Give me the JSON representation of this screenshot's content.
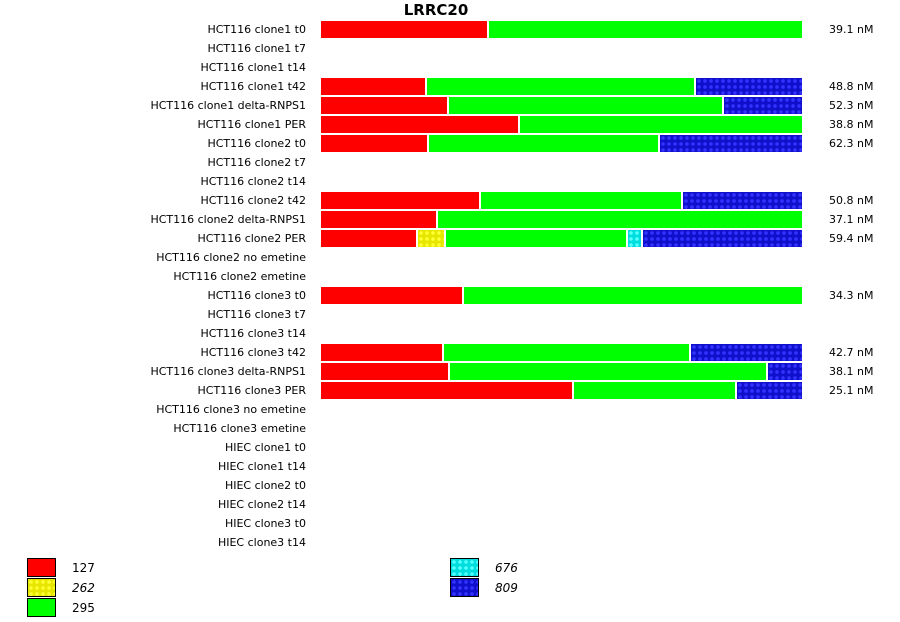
{
  "chart_data": {
    "type": "bar",
    "orientation": "horizontal-stacked-100",
    "title": "LRRC20",
    "xlabel": "",
    "ylabel": "",
    "legend": [
      {
        "key": "127",
        "color": "#ff0000",
        "pattern": "red",
        "italic": false
      },
      {
        "key": "262",
        "color": "#e6e600",
        "pattern": "yellow",
        "italic": true
      },
      {
        "key": "295",
        "color": "#00ff00",
        "pattern": "green",
        "italic": false
      },
      {
        "key": "676",
        "color": "#00dddd",
        "pattern": "cyan",
        "italic": true
      },
      {
        "key": "809",
        "color": "#1010cc",
        "pattern": "blue",
        "italic": true
      }
    ],
    "legend_position": "bottom",
    "categories": [
      "HCT116 clone1 t0",
      "HCT116 clone1 t7",
      "HCT116 clone1 t14",
      "HCT116 clone1 t42",
      "HCT116 clone1 delta-RNPS1",
      "HCT116 clone1 PER",
      "HCT116 clone2 t0",
      "HCT116 clone2 t7",
      "HCT116 clone2 t14",
      "HCT116 clone2 t42",
      "HCT116 clone2 delta-RNPS1",
      "HCT116 clone2 PER",
      "HCT116 clone2 no emetine",
      "HCT116 clone2 emetine",
      "HCT116 clone3 t0",
      "HCT116 clone3 t7",
      "HCT116 clone3 t14",
      "HCT116 clone3 t42",
      "HCT116 clone3 delta-RNPS1",
      "HCT116 clone3 PER",
      "HCT116 clone3 no emetine",
      "HCT116 clone3 emetine",
      "HIEC clone1 t0",
      "HIEC clone1 t14",
      "HIEC clone2 t0",
      "HIEC clone2 t14",
      "HIEC clone3 t0",
      "HIEC clone3 t14"
    ],
    "rows": [
      {
        "label": "HCT116 clone1 t0",
        "total": "39.1 nM",
        "segments": [
          {
            "key": "127",
            "fraction": 0.35
          },
          {
            "key": "295",
            "fraction": 0.65
          }
        ]
      },
      {
        "label": "HCT116 clone1 t7",
        "total": "",
        "segments": []
      },
      {
        "label": "HCT116 clone1 t14",
        "total": "",
        "segments": []
      },
      {
        "label": "HCT116 clone1 t42",
        "total": "48.8 nM",
        "segments": [
          {
            "key": "127",
            "fraction": 0.22
          },
          {
            "key": "295",
            "fraction": 0.56
          },
          {
            "key": "809",
            "fraction": 0.22
          }
        ]
      },
      {
        "label": "HCT116 clone1 delta-RNPS1",
        "total": "52.3 nM",
        "segments": [
          {
            "key": "127",
            "fraction": 0.267
          },
          {
            "key": "295",
            "fraction": 0.571
          },
          {
            "key": "809",
            "fraction": 0.162
          }
        ]
      },
      {
        "label": "HCT116 clone1 PER",
        "total": "38.8 nM",
        "segments": [
          {
            "key": "127",
            "fraction": 0.413
          },
          {
            "key": "295",
            "fraction": 0.587
          }
        ]
      },
      {
        "label": "HCT116 clone2 t0",
        "total": "62.3 nM",
        "segments": [
          {
            "key": "127",
            "fraction": 0.225
          },
          {
            "key": "295",
            "fraction": 0.479
          },
          {
            "key": "809",
            "fraction": 0.296
          }
        ]
      },
      {
        "label": "HCT116 clone2 t7",
        "total": "",
        "segments": []
      },
      {
        "label": "HCT116 clone2 t14",
        "total": "",
        "segments": []
      },
      {
        "label": "HCT116 clone2 t42",
        "total": "50.8 nM",
        "segments": [
          {
            "key": "127",
            "fraction": 0.333
          },
          {
            "key": "295",
            "fraction": 0.419
          },
          {
            "key": "809",
            "fraction": 0.248
          }
        ]
      },
      {
        "label": "HCT116 clone2 delta-RNPS1",
        "total": "37.1 nM",
        "segments": [
          {
            "key": "127",
            "fraction": 0.244
          },
          {
            "key": "295",
            "fraction": 0.756
          }
        ]
      },
      {
        "label": "HCT116 clone2 PER",
        "total": "59.4 nM",
        "segments": [
          {
            "key": "127",
            "fraction": 0.202
          },
          {
            "key": "262",
            "fraction": 0.058
          },
          {
            "key": "295",
            "fraction": 0.379
          },
          {
            "key": "676",
            "fraction": 0.031
          },
          {
            "key": "809",
            "fraction": 0.33
          }
        ]
      },
      {
        "label": "HCT116 clone2 no emetine",
        "total": "",
        "segments": []
      },
      {
        "label": "HCT116 clone2 emetine",
        "total": "",
        "segments": []
      },
      {
        "label": "HCT116 clone3 t0",
        "total": "34.3 nM",
        "segments": [
          {
            "key": "127",
            "fraction": 0.298
          },
          {
            "key": "295",
            "fraction": 0.702
          }
        ]
      },
      {
        "label": "HCT116 clone3 t7",
        "total": "",
        "segments": []
      },
      {
        "label": "HCT116 clone3 t14",
        "total": "",
        "segments": []
      },
      {
        "label": "HCT116 clone3 t42",
        "total": "42.7 nM",
        "segments": [
          {
            "key": "127",
            "fraction": 0.256
          },
          {
            "key": "295",
            "fraction": 0.513
          },
          {
            "key": "809",
            "fraction": 0.231
          }
        ]
      },
      {
        "label": "HCT116 clone3 delta-RNPS1",
        "total": "38.1 nM",
        "segments": [
          {
            "key": "127",
            "fraction": 0.269
          },
          {
            "key": "295",
            "fraction": 0.66
          },
          {
            "key": "809",
            "fraction": 0.071
          }
        ]
      },
      {
        "label": "HCT116 clone3 PER",
        "total": "25.1 nM",
        "segments": [
          {
            "key": "127",
            "fraction": 0.525
          },
          {
            "key": "295",
            "fraction": 0.34
          },
          {
            "key": "809",
            "fraction": 0.135
          }
        ]
      },
      {
        "label": "HCT116 clone3 no emetine",
        "total": "",
        "segments": []
      },
      {
        "label": "HCT116 clone3 emetine",
        "total": "",
        "segments": []
      },
      {
        "label": "HIEC clone1 t0",
        "total": "",
        "segments": []
      },
      {
        "label": "HIEC clone1 t14",
        "total": "",
        "segments": []
      },
      {
        "label": "HIEC clone2 t0",
        "total": "",
        "segments": []
      },
      {
        "label": "HIEC clone2 t14",
        "total": "",
        "segments": []
      },
      {
        "label": "HIEC clone3 t0",
        "total": "",
        "segments": []
      },
      {
        "label": "HIEC clone3 t14",
        "total": "",
        "segments": []
      }
    ]
  }
}
